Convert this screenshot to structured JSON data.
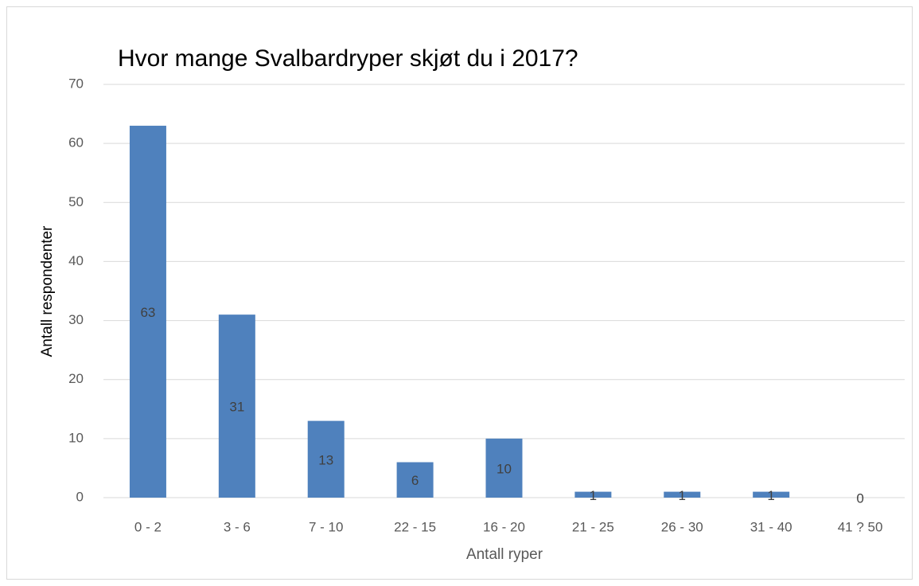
{
  "chart_data": {
    "type": "bar",
    "title": "Hvor mange Svalbardryper skjøt du i 2017?",
    "xlabel": "Antall ryper",
    "ylabel": "Antall respondenter",
    "categories": [
      "0 - 2",
      "3 - 6",
      "7 - 10",
      "22 - 15",
      "16 - 20",
      "21 - 25",
      "26 - 30",
      "31 - 40",
      "41 ? 50"
    ],
    "values": [
      63,
      31,
      13,
      6,
      10,
      1,
      1,
      1,
      0
    ],
    "color": "#4f81bd",
    "ylim": [
      0,
      70
    ],
    "yticks": [
      0,
      10,
      20,
      30,
      40,
      50,
      60,
      70
    ],
    "grid": true
  }
}
